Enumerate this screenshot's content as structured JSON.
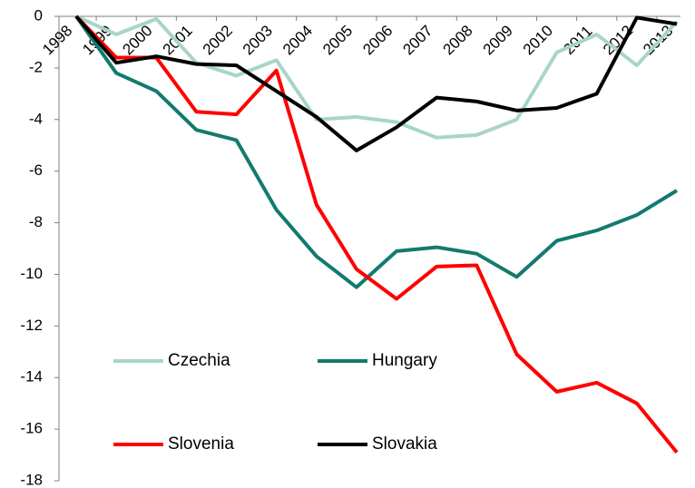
{
  "chart_data": {
    "type": "line",
    "categories": [
      "1998",
      "1999",
      "2000",
      "2001",
      "2002",
      "2003",
      "2004",
      "2005",
      "2006",
      "2007",
      "2008",
      "2009",
      "2010",
      "2011",
      "2012",
      "2013"
    ],
    "series": [
      {
        "name": "Czechia",
        "color": "#a8d5c8",
        "values": [
          0,
          -0.7,
          -0.1,
          -1.8,
          -2.3,
          -1.7,
          -4.0,
          -3.9,
          -4.1,
          -4.7,
          -4.6,
          -4.0,
          -1.4,
          -0.7,
          -1.9,
          -0.2
        ]
      },
      {
        "name": "Hungary",
        "color": "#137a6e",
        "values": [
          0,
          -2.2,
          -2.9,
          -4.4,
          -4.8,
          -7.5,
          -9.3,
          -10.5,
          -9.1,
          -8.95,
          -9.2,
          -10.1,
          -8.7,
          -8.3,
          -7.7,
          -6.75
        ]
      },
      {
        "name": "Slovenia",
        "color": "#ff0000",
        "values": [
          0,
          -1.6,
          -1.6,
          -3.7,
          -3.8,
          -2.1,
          -7.3,
          -9.8,
          -10.95,
          -9.7,
          -9.65,
          -13.1,
          -14.55,
          -14.2,
          -15.0,
          -16.9
        ]
      },
      {
        "name": "Slovakia",
        "color": "#000000",
        "values": [
          0,
          -1.8,
          -1.55,
          -1.85,
          -1.9,
          -2.9,
          -3.9,
          -5.2,
          -4.3,
          -3.15,
          -3.3,
          -3.65,
          -3.55,
          -3.0,
          -0.05,
          -0.3
        ]
      }
    ],
    "ylim": [
      -18,
      0
    ],
    "yticks": [
      0,
      -2,
      -4,
      -6,
      -8,
      -10,
      -12,
      -14,
      -16,
      -18
    ],
    "grid": false
  }
}
